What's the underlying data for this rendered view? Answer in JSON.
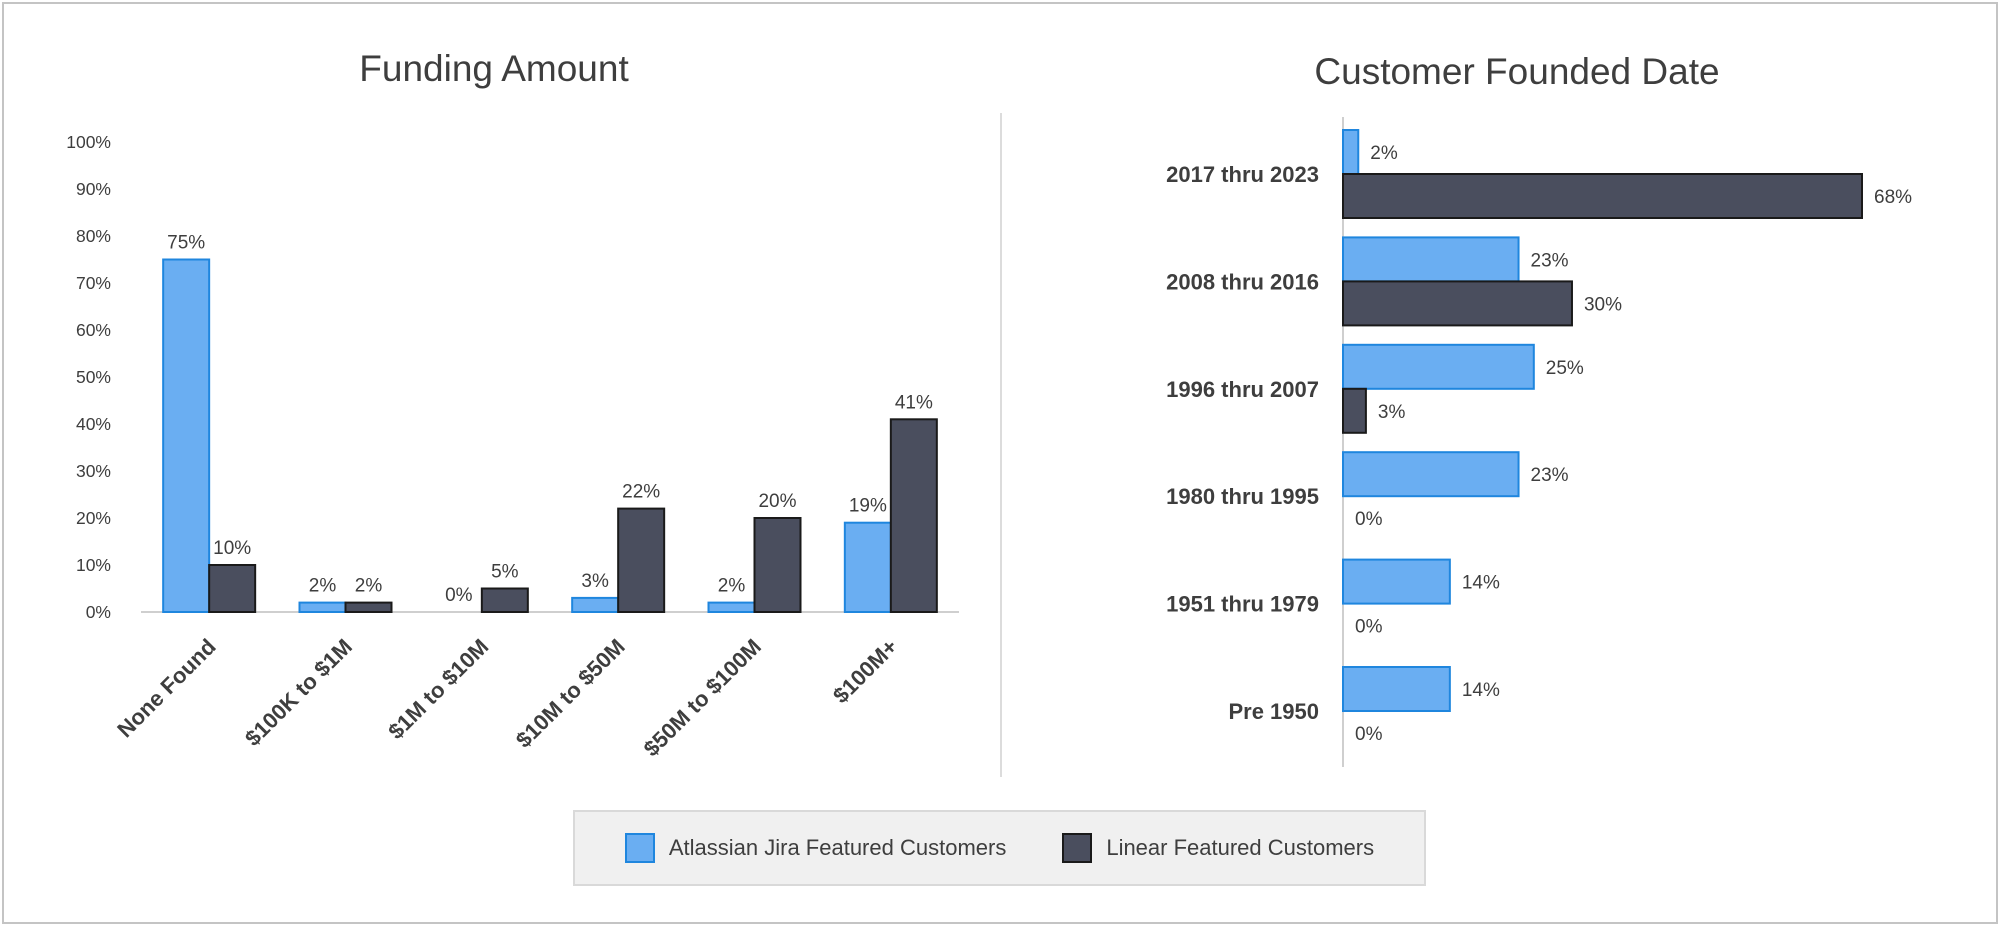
{
  "colors": {
    "series_a": "#6aaef2",
    "series_a_border": "#1f86de",
    "series_b": "#4a4e5e",
    "series_b_border": "#1a1a1a"
  },
  "legend": {
    "items": [
      {
        "label": "Atlassian Jira Featured Customers"
      },
      {
        "label": "Linear Featured Customers"
      }
    ]
  },
  "chart_data": [
    {
      "type": "bar",
      "title": "Funding Amount",
      "orientation": "vertical",
      "categories": [
        "None Found",
        "$100K to $1M",
        "$1M to $10M",
        "$10M to $50M",
        "$50M to $100M",
        "$100M+"
      ],
      "series": [
        {
          "name": "Atlassian Jira Featured Customers",
          "values": [
            75,
            2,
            0,
            3,
            2,
            19
          ]
        },
        {
          "name": "Linear Featured Customers",
          "values": [
            10,
            2,
            5,
            22,
            20,
            41
          ]
        }
      ],
      "data_labels": [
        [
          "75%",
          "2%",
          "0%",
          "3%",
          "2%",
          "19%"
        ],
        [
          "10%",
          "2%",
          "5%",
          "22%",
          "20%",
          "41%"
        ]
      ],
      "ylim": [
        0,
        100
      ],
      "yticks": [
        "0%",
        "10%",
        "20%",
        "30%",
        "40%",
        "50%",
        "60%",
        "70%",
        "80%",
        "90%",
        "100%"
      ],
      "xlabel": "",
      "ylabel": "",
      "grid": false
    },
    {
      "type": "bar",
      "title": "Customer Founded Date",
      "orientation": "horizontal",
      "categories": [
        "2017 thru 2023",
        "2008 thru 2016",
        "1996 thru 2007",
        "1980 thru 1995",
        "1951 thru 1979",
        "Pre 1950"
      ],
      "series": [
        {
          "name": "Atlassian Jira Featured Customers",
          "values": [
            2,
            23,
            25,
            23,
            14,
            14
          ]
        },
        {
          "name": "Linear Featured Customers",
          "values": [
            68,
            30,
            3,
            0,
            0,
            0
          ]
        }
      ],
      "data_labels": [
        [
          "2%",
          "23%",
          "25%",
          "23%",
          "14%",
          "14%"
        ],
        [
          "68%",
          "30%",
          "3%",
          "0%",
          "0%",
          "0%"
        ]
      ],
      "xlabel": "",
      "ylabel": "",
      "grid": false
    }
  ]
}
